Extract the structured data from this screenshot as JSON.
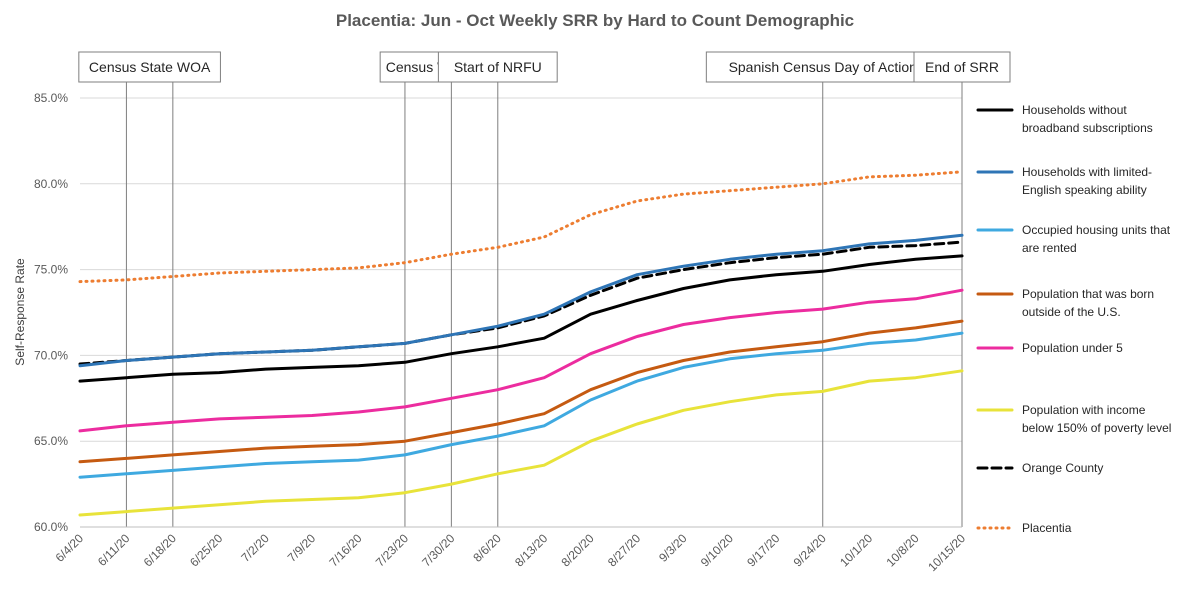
{
  "chart_data": {
    "type": "line",
    "title": "Placentia: Jun - Oct Weekly SRR by Hard to Count Demographic",
    "xlabel": "",
    "ylabel": "Self-Response Rate",
    "ylim": [
      60,
      85
    ],
    "yticks": [
      "60.0%",
      "65.0%",
      "70.0%",
      "75.0%",
      "80.0%",
      "85.0%"
    ],
    "ytick_values": [
      60,
      65,
      70,
      75,
      80,
      85
    ],
    "categories": [
      "6/4/20",
      "6/11/20",
      "6/18/20",
      "6/25/20",
      "7/2/20",
      "7/9/20",
      "7/16/20",
      "7/23/20",
      "7/30/20",
      "8/6/20",
      "8/13/20",
      "8/20/20",
      "8/27/20",
      "9/3/20",
      "9/10/20",
      "9/17/20",
      "9/24/20",
      "10/1/20",
      "10/8/20",
      "10/15/20"
    ],
    "events": [
      {
        "label": "Census State WOA",
        "week": [
          2,
          3
        ]
      },
      {
        "label": "Census WOA",
        "week": [
          8,
          9
        ]
      },
      {
        "label": "Start of NRFU",
        "week": [
          10
        ]
      },
      {
        "label": "Spanish Census Day of Action",
        "week": [
          17
        ]
      },
      {
        "label": "End of SRR",
        "week": [
          20
        ]
      }
    ],
    "series": [
      {
        "name": "Households without broadband subscriptions",
        "legend_lines": [
          "Households without",
          "broadband subscriptions"
        ],
        "color": "#000000",
        "style": "solid",
        "values": [
          68.5,
          68.7,
          68.9,
          69.0,
          69.2,
          69.3,
          69.4,
          69.6,
          70.1,
          70.5,
          71.0,
          72.4,
          73.2,
          73.9,
          74.4,
          74.7,
          74.9,
          75.3,
          75.6,
          75.8
        ]
      },
      {
        "name": "Households with limited-English speaking ability",
        "legend_lines": [
          "Households with limited-",
          "English speaking ability"
        ],
        "color": "#2E75B6",
        "style": "solid",
        "values": [
          69.4,
          69.7,
          69.9,
          70.1,
          70.2,
          70.3,
          70.5,
          70.7,
          71.2,
          71.7,
          72.4,
          73.7,
          74.7,
          75.2,
          75.6,
          75.9,
          76.1,
          76.5,
          76.7,
          77.0
        ]
      },
      {
        "name": "Occupied housing units that are rented",
        "legend_lines": [
          "Occupied housing units that",
          "are rented"
        ],
        "color": "#3FA9E0",
        "style": "solid",
        "values": [
          62.9,
          63.1,
          63.3,
          63.5,
          63.7,
          63.8,
          63.9,
          64.2,
          64.8,
          65.3,
          65.9,
          67.4,
          68.5,
          69.3,
          69.8,
          70.1,
          70.3,
          70.7,
          70.9,
          71.3
        ]
      },
      {
        "name": "Population that was born outside of the U.S.",
        "legend_lines": [
          "Population that was born",
          "outside of the U.S."
        ],
        "color": "#C55A11",
        "style": "solid",
        "values": [
          63.8,
          64.0,
          64.2,
          64.4,
          64.6,
          64.7,
          64.8,
          65.0,
          65.5,
          66.0,
          66.6,
          68.0,
          69.0,
          69.7,
          70.2,
          70.5,
          70.8,
          71.3,
          71.6,
          72.0
        ]
      },
      {
        "name": "Population under 5",
        "legend_lines": [
          "Population under 5"
        ],
        "color": "#EC2C9F",
        "style": "solid",
        "values": [
          65.6,
          65.9,
          66.1,
          66.3,
          66.4,
          66.5,
          66.7,
          67.0,
          67.5,
          68.0,
          68.7,
          70.1,
          71.1,
          71.8,
          72.2,
          72.5,
          72.7,
          73.1,
          73.3,
          73.8
        ]
      },
      {
        "name": "Population with income below 150% of poverty level",
        "legend_lines": [
          "Population with income",
          "below 150% of poverty level"
        ],
        "color": "#E8E33A",
        "style": "solid",
        "values": [
          60.7,
          60.9,
          61.1,
          61.3,
          61.5,
          61.6,
          61.7,
          62.0,
          62.5,
          63.1,
          63.6,
          65.0,
          66.0,
          66.8,
          67.3,
          67.7,
          67.9,
          68.5,
          68.7,
          69.1
        ]
      },
      {
        "name": "Orange County",
        "legend_lines": [
          "Orange County"
        ],
        "color": "#000000",
        "style": "dashed",
        "values": [
          69.5,
          69.7,
          69.9,
          70.1,
          70.2,
          70.3,
          70.5,
          70.7,
          71.2,
          71.6,
          72.3,
          73.5,
          74.5,
          75.0,
          75.4,
          75.7,
          75.9,
          76.3,
          76.4,
          76.6
        ]
      },
      {
        "name": "Placentia",
        "legend_lines": [
          "Placentia"
        ],
        "color": "#ED7D31",
        "style": "dotted",
        "values": [
          74.3,
          74.4,
          74.6,
          74.8,
          74.9,
          75.0,
          75.1,
          75.4,
          75.9,
          76.3,
          76.9,
          78.2,
          79.0,
          79.4,
          79.6,
          79.8,
          80.0,
          80.4,
          80.5,
          80.7
        ]
      }
    ]
  }
}
